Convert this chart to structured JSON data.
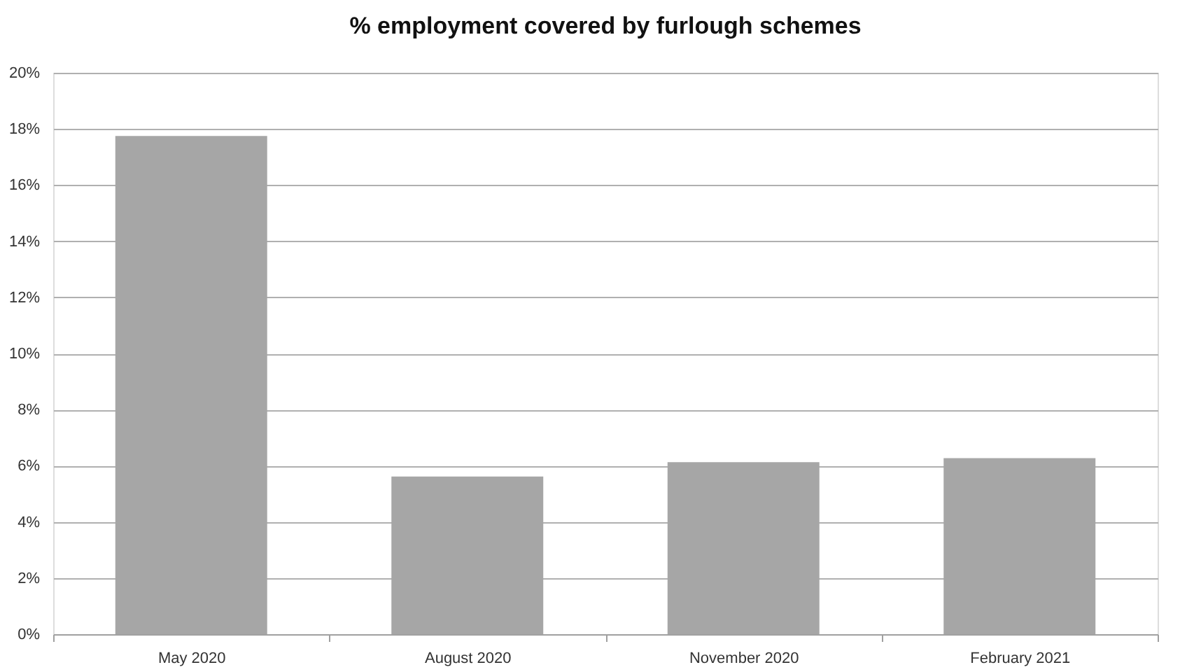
{
  "chart_data": {
    "type": "bar",
    "title": "% employment covered by furlough schemes",
    "categories": [
      "May 2020",
      "August 2020",
      "November 2020",
      "February 2021"
    ],
    "values": [
      17.75,
      5.62,
      6.13,
      6.27
    ],
    "color": "#a6a6a6",
    "ylim": [
      0,
      20
    ],
    "yticks": [
      {
        "value": 0,
        "label": "0%"
      },
      {
        "value": 2,
        "label": "2%"
      },
      {
        "value": 4,
        "label": "4%"
      },
      {
        "value": 6,
        "label": "6%"
      },
      {
        "value": 8,
        "label": "8%"
      },
      {
        "value": 10,
        "label": "10%"
      },
      {
        "value": 12,
        "label": "12%"
      },
      {
        "value": 14,
        "label": "14%"
      },
      {
        "value": 16,
        "label": "16%"
      },
      {
        "value": 18,
        "label": "18%"
      },
      {
        "value": 20,
        "label": "20%"
      }
    ],
    "grid": "y"
  }
}
